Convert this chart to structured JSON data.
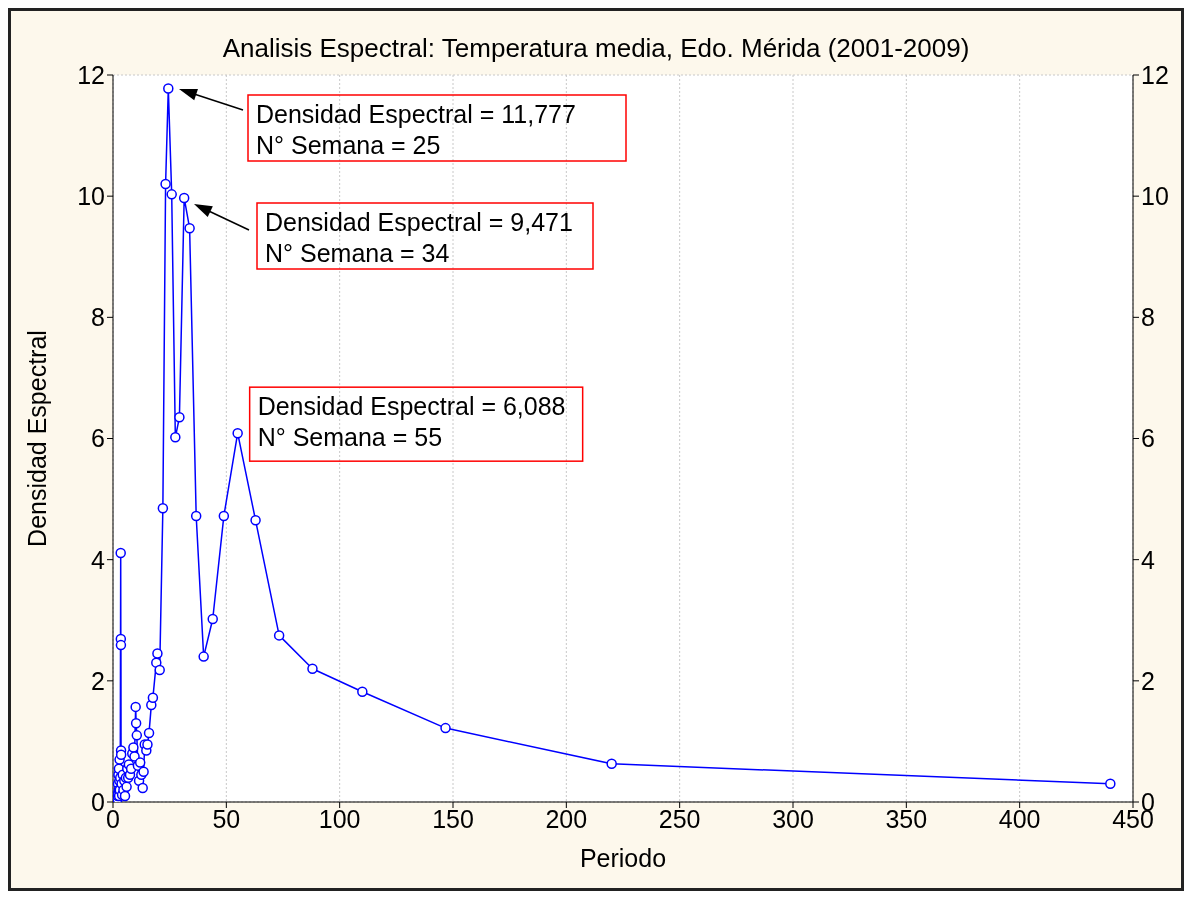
{
  "chart_data": {
    "type": "line",
    "title": "Analisis Espectral: Temperatura media, Edo. Mérida (2001-2009)",
    "xlabel": "Periodo",
    "ylabel": "Densidad Espectral",
    "x": [
      2.0,
      2.1,
      2.2,
      2.3,
      2.4,
      2.5,
      2.6,
      2.7,
      2.8,
      2.9,
      3.0,
      3.2,
      3.4,
      3.45,
      3.5,
      3.55,
      3.6,
      3.8,
      4.0,
      4.3,
      4.6,
      5.0,
      5.3,
      5.7,
      6.0,
      6.3,
      6.7,
      7.0,
      7.5,
      8.0,
      8.5,
      9.0,
      9.5,
      10.0,
      10.2,
      10.5,
      11.0,
      11.5,
      12.0,
      12.5,
      13.1,
      13.5,
      14.0,
      14.7,
      15.2,
      15.9,
      16.9,
      17.6,
      19.1,
      19.6,
      20.6,
      22.0,
      23.2,
      24.4,
      25.9,
      27.5,
      29.3,
      31.4,
      33.8,
      36.7,
      40.0,
      44.0,
      48.9,
      55.0,
      62.9,
      73.3,
      88.0,
      110.0,
      146.7,
      220.0,
      440.0
    ],
    "series": [
      {
        "color": "#0000ff",
        "values": [
          0.05,
          0.1,
          0.3,
          0.15,
          0.45,
          0.2,
          0.55,
          0.1,
          0.35,
          0.7,
          0.2,
          0.4,
          4.11,
          2.69,
          2.59,
          0.85,
          0.78,
          0.3,
          0.12,
          0.45,
          0.2,
          0.35,
          0.1,
          0.4,
          0.25,
          0.55,
          0.4,
          0.62,
          0.45,
          0.55,
          0.8,
          0.9,
          0.75,
          1.57,
          1.3,
          1.1,
          0.6,
          0.35,
          0.65,
          0.45,
          0.23,
          0.5,
          0.95,
          0.85,
          0.95,
          1.14,
          1.6,
          1.72,
          2.3,
          2.45,
          2.18,
          4.85,
          10.2,
          11.777,
          10.03,
          6.02,
          6.35,
          9.97,
          9.471,
          4.72,
          2.4,
          3.02,
          4.72,
          6.088,
          4.65,
          2.75,
          2.2,
          1.82,
          1.22,
          0.63,
          0.3
        ]
      }
    ],
    "xlim": [
      0,
      450
    ],
    "xticks": [
      0,
      50,
      100,
      150,
      200,
      250,
      300,
      350,
      400,
      450
    ],
    "ylim": [
      0,
      12
    ],
    "yticks": [
      0,
      2,
      4,
      6,
      8,
      10,
      12
    ],
    "y2lim": [
      0,
      12
    ],
    "y2ticks": [
      0,
      2,
      4,
      6,
      8,
      10,
      12
    ],
    "grid": true,
    "marker": "circle",
    "line_style": "solid",
    "annotations": [
      "Densidad Espectral = 11,777\nN° Semana = 25",
      "Densidad Espectral = 9,471\nN° Semana = 34",
      {
        "text": "Densidad Espectral = 6,088\nN° Semana = 55",
        "x": 55.0,
        "y": 6.088
      }
    ]
  }
}
